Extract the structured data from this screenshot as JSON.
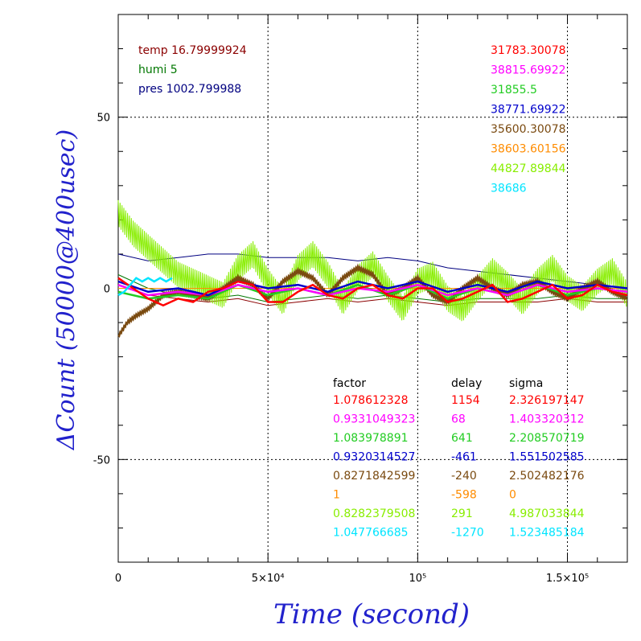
{
  "chart_data": {
    "type": "line",
    "xlabel": "Time (second)",
    "ylabel": "ΔCount (50000@400usec)",
    "xlim": [
      0,
      170000
    ],
    "ylim": [
      -80,
      80
    ],
    "grid": true,
    "x_ticks": [
      {
        "value": 0,
        "label": "0"
      },
      {
        "value": 50000,
        "label": "5×10⁴"
      },
      {
        "value": 100000,
        "label": "10⁵"
      },
      {
        "value": 150000,
        "label": "1.5×10⁵"
      }
    ],
    "y_ticks": [
      {
        "value": 50,
        "label": "50"
      },
      {
        "value": 0,
        "label": "0"
      },
      {
        "value": -50,
        "label": "-50"
      }
    ],
    "environment": [
      {
        "label": "temp 16.79999924",
        "color": "#8b0000"
      },
      {
        "label": "humi 5",
        "color": "#007700"
      },
      {
        "label": "pres 1002.799988",
        "color": "#000080"
      }
    ],
    "reference_line": {
      "y": 0,
      "color": "#ff8c00"
    },
    "table_headers": {
      "factor": "factor",
      "delay": "delay",
      "sigma": "sigma"
    },
    "series": [
      {
        "mean": "31783.30078",
        "factor": "1.078612328",
        "delay": "1154",
        "sigma": "2.326197147",
        "color": "#ff0000",
        "x": [
          0,
          5000,
          10000,
          15000,
          20000,
          25000,
          30000,
          35000,
          40000,
          45000,
          50000,
          55000,
          60000,
          65000,
          70000,
          75000,
          80000,
          85000,
          90000,
          95000,
          100000,
          105000,
          110000,
          115000,
          120000,
          125000,
          130000,
          135000,
          140000,
          145000,
          150000,
          155000,
          160000,
          165000,
          170000
        ],
        "y": [
          3,
          0,
          -3,
          -5,
          -3,
          -4,
          -1,
          0,
          2,
          1,
          -4,
          -4,
          -1,
          1,
          -2,
          -3,
          0,
          1,
          -2,
          -3,
          0,
          0,
          -4,
          -3,
          -1,
          1,
          -4,
          -3,
          -1,
          1,
          -3,
          -2,
          1,
          -1,
          -2
        ]
      },
      {
        "mean": "38815.69922",
        "factor": "0.9331049323",
        "delay": "68",
        "sigma": "1.403320312",
        "color": "#ff00ff",
        "x": [
          0,
          10000,
          20000,
          30000,
          40000,
          50000,
          60000,
          70000,
          80000,
          90000,
          100000,
          110000,
          120000,
          130000,
          140000,
          150000,
          160000,
          170000
        ],
        "y": [
          1,
          -2,
          -1,
          -2,
          1,
          -1,
          0,
          -2,
          0,
          -1,
          1,
          -2,
          0,
          -2,
          1,
          -1,
          0,
          -1
        ]
      },
      {
        "mean": "31855.5",
        "factor": "1.083978891",
        "delay": "641",
        "sigma": "2.208570719",
        "color": "#22cc22",
        "x": [
          0,
          10000,
          20000,
          30000,
          40000,
          50000,
          60000,
          70000,
          80000,
          90000,
          100000,
          110000,
          120000,
          130000,
          140000,
          150000,
          160000,
          170000
        ],
        "y": [
          -1,
          -3,
          -2,
          -3,
          1,
          -2,
          0,
          -2,
          1,
          -2,
          1,
          -3,
          0,
          -2,
          1,
          -2,
          0,
          -1
        ]
      },
      {
        "mean": "38771.69922",
        "factor": "0.9320314527",
        "delay": "-461",
        "sigma": "1.551502585",
        "color": "#0000cc",
        "x": [
          0,
          10000,
          20000,
          30000,
          40000,
          50000,
          60000,
          70000,
          80000,
          90000,
          100000,
          110000,
          120000,
          130000,
          140000,
          150000,
          160000,
          170000
        ],
        "y": [
          2,
          -1,
          0,
          -2,
          2,
          0,
          1,
          -1,
          2,
          0,
          2,
          -1,
          1,
          -1,
          2,
          0,
          1,
          0
        ]
      },
      {
        "mean": "35600.30078",
        "factor": "0.8271842599",
        "delay": "-240",
        "sigma": "2.502482176",
        "color": "#7a4a10",
        "x": [
          0,
          3000,
          6000,
          10000,
          15000,
          20000,
          25000,
          30000,
          35000,
          40000,
          45000,
          50000,
          55000,
          60000,
          65000,
          70000,
          75000,
          80000,
          85000,
          90000,
          95000,
          100000,
          105000,
          110000,
          115000,
          120000,
          125000,
          130000,
          135000,
          140000,
          145000,
          150000,
          155000,
          160000,
          165000,
          170000
        ],
        "y": [
          -14,
          -10,
          -8,
          -6,
          -2,
          -1,
          -2,
          -3,
          0,
          3,
          1,
          -3,
          2,
          5,
          3,
          -2,
          3,
          6,
          4,
          -2,
          0,
          3,
          -2,
          -4,
          0,
          3,
          0,
          -2,
          1,
          2,
          -1,
          -3,
          0,
          2,
          -1,
          -3
        ]
      },
      {
        "mean": "38603.60156",
        "factor": "1",
        "delay": "-598",
        "sigma": "0",
        "color": "#ff8c00",
        "x": [
          0,
          170000
        ],
        "y": [
          0,
          0
        ]
      },
      {
        "mean": "44827.89844",
        "factor": "0.8282379508",
        "delay": "291",
        "sigma": "4.987033844",
        "color": "#88ee00",
        "x": [
          0,
          5000,
          10000,
          15000,
          20000,
          25000,
          30000,
          35000,
          40000,
          45000,
          50000,
          55000,
          60000,
          65000,
          70000,
          75000,
          80000,
          85000,
          90000,
          95000,
          100000,
          105000,
          110000,
          115000,
          120000,
          125000,
          130000,
          135000,
          140000,
          145000,
          150000,
          155000,
          160000,
          165000,
          170000
        ],
        "y": [
          22,
          16,
          12,
          8,
          4,
          2,
          0,
          -2,
          6,
          10,
          2,
          -4,
          6,
          10,
          4,
          -4,
          3,
          7,
          0,
          -6,
          2,
          4,
          -3,
          -6,
          0,
          5,
          1,
          -4,
          2,
          6,
          0,
          -3,
          2,
          5,
          -2
        ]
      },
      {
        "mean": "38686",
        "factor": "1.047766685",
        "delay": "-1270",
        "sigma": "1.523485184",
        "color": "#00e5ff",
        "x": [
          0,
          2000,
          4000,
          6000,
          8000,
          10000,
          12000,
          14000,
          16000,
          18000
        ],
        "y": [
          -2,
          -1,
          1,
          3,
          2,
          3,
          2,
          3,
          2,
          3
        ]
      }
    ],
    "environment_traces": [
      {
        "name": "temp",
        "color": "#8b0000",
        "x": [
          0,
          10000,
          20000,
          30000,
          40000,
          50000,
          60000,
          70000,
          80000,
          90000,
          100000,
          110000,
          120000,
          130000,
          140000,
          150000,
          160000,
          170000
        ],
        "y": [
          1,
          -2,
          -3,
          -4,
          -3,
          -5,
          -4,
          -3,
          -4,
          -3,
          -4,
          -5,
          -4,
          -4,
          -4,
          -3,
          -4,
          -4
        ]
      },
      {
        "name": "humi",
        "color": "#007700",
        "x": [
          0,
          10000,
          20000,
          30000,
          40000,
          50000,
          60000,
          70000,
          80000,
          90000,
          100000,
          110000,
          120000,
          130000,
          140000,
          150000,
          160000,
          170000
        ],
        "y": [
          4,
          0,
          -2,
          -3,
          -2,
          -4,
          -3,
          -2,
          -3,
          -2,
          -3,
          -4,
          -3,
          -3,
          -3,
          -2,
          -3,
          -3
        ]
      },
      {
        "name": "pres",
        "color": "#000080",
        "x": [
          0,
          10000,
          20000,
          30000,
          40000,
          50000,
          60000,
          70000,
          80000,
          90000,
          100000,
          110000,
          120000,
          130000,
          140000,
          150000,
          160000,
          170000
        ],
        "y": [
          10,
          8,
          9,
          10,
          10,
          9,
          9,
          9,
          8,
          9,
          8,
          6,
          5,
          4,
          3,
          2,
          1,
          0
        ]
      }
    ]
  }
}
